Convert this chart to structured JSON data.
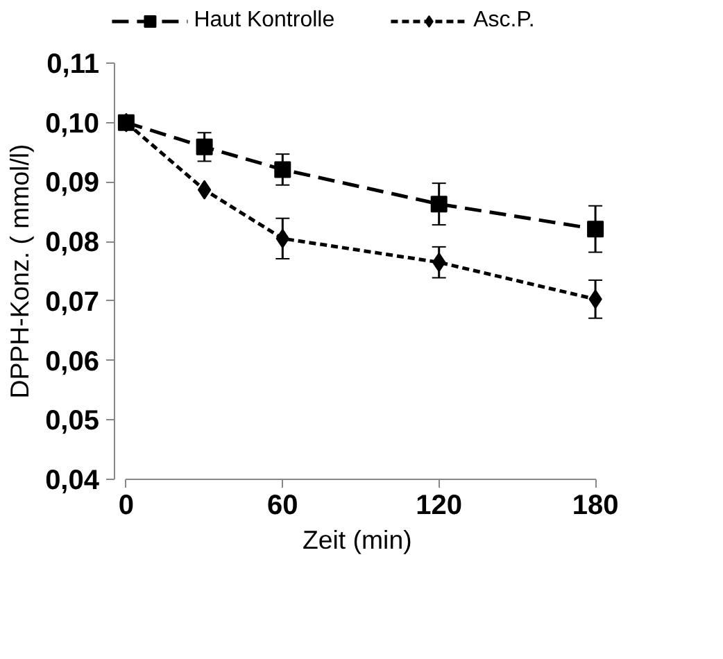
{
  "chart_data": {
    "type": "line",
    "xlabel": "Zeit  (min)",
    "ylabel": "DPPH-Konz. ( mmol/l)",
    "x": [
      0,
      30,
      60,
      120,
      180
    ],
    "series": [
      {
        "name": "Haut Kontrolle",
        "color": "#000000",
        "marker": "square",
        "line_style": "dashed",
        "values": [
          0.1,
          0.0959,
          0.0921,
          0.0863,
          0.0821
        ],
        "errors": [
          null,
          0.0024,
          0.0026,
          0.0035,
          0.0039
        ]
      },
      {
        "name": "Asc.P.",
        "color": "#000000",
        "marker": "diamond",
        "line_style": "dotted",
        "values": [
          0.1,
          0.0887,
          0.0805,
          0.0765,
          0.0703
        ],
        "errors": [
          null,
          null,
          0.0034,
          0.0026,
          0.0032
        ]
      }
    ],
    "xlim": [
      0,
      180
    ],
    "xticks": [
      0,
      60,
      120,
      180
    ],
    "ylim": [
      0.04,
      0.11
    ],
    "yticks": [
      {
        "value": 0.04,
        "label": "0,04"
      },
      {
        "value": 0.05,
        "label": "0,05"
      },
      {
        "value": 0.06,
        "label": "0,06"
      },
      {
        "value": 0.07,
        "label": "0,07"
      },
      {
        "value": 0.08,
        "label": "0,08"
      },
      {
        "value": 0.09,
        "label": "0,09"
      },
      {
        "value": 0.1,
        "label": "0,10"
      },
      {
        "value": 0.11,
        "label": "0,11"
      }
    ],
    "grid": false,
    "legend": "top"
  }
}
